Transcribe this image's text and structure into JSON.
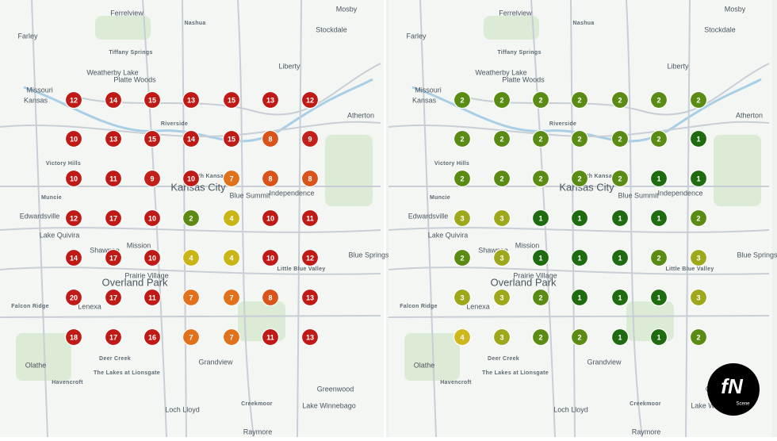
{
  "maps": [
    {
      "labels": [
        "Ferrelview",
        "Mosby",
        "Farley",
        "Stockdale",
        "Nashua",
        "Tiffany Springs",
        "Weatherby Lake",
        "Platte Woods",
        "Liberty",
        "Missouri",
        "Kansas",
        "Atherton",
        "Riverside",
        "North Kansas City",
        "Kansas City",
        "Blue Summit",
        "Independence",
        "Edwardsville",
        "Lake Quivira",
        "Shawnee",
        "Mission",
        "Prairie Village",
        "Overland Park",
        "Falcon Ridge",
        "Lenexa",
        "Blue Springs",
        "Little Blue Valley",
        "Deer Creek",
        "The Lakes at Lionsgate",
        "Grandview",
        "Olathe",
        "Havencroft",
        "Greenwood",
        "Creekmoor",
        "Loch Lloyd",
        "Raymore",
        "Lake Winnebago",
        "Muncie",
        "Victory Hills"
      ],
      "grid": [
        [
          12,
          14,
          15,
          13,
          15,
          13,
          12
        ],
        [
          10,
          13,
          15,
          14,
          15,
          8,
          9
        ],
        [
          10,
          11,
          9,
          10,
          7,
          8,
          8
        ],
        [
          12,
          17,
          10,
          2,
          4,
          10,
          11
        ],
        [
          14,
          17,
          10,
          4,
          4,
          10,
          12
        ],
        [
          20,
          17,
          11,
          7,
          7,
          8,
          13
        ],
        [
          18,
          17,
          16,
          7,
          7,
          11,
          13
        ]
      ],
      "palette": {
        "2": "#5c8a12",
        "4": "#c9b515",
        "7": "#e2711b",
        "8": "#d9531a",
        "9": "#c2201a",
        "10": "#c01a17",
        "11": "#c01a17",
        "12": "#c01a17",
        "13": "#c01a17",
        "14": "#c01a17",
        "15": "#c01a17",
        "16": "#c01a17",
        "17": "#c01a17",
        "18": "#c01a17",
        "20": "#c01a17"
      }
    },
    {
      "labels": [
        "Ferrelview",
        "Mosby",
        "Farley",
        "Stockdale",
        "Nashua",
        "Tiffany Springs",
        "Weatherby Lake",
        "Platte Woods",
        "Liberty",
        "Missouri",
        "Kansas",
        "Atherton",
        "Riverside",
        "North Kansas City",
        "Kansas City",
        "Blue Summit",
        "Independence",
        "Edwardsville",
        "Lake Quivira",
        "Shawnee",
        "Mission",
        "Prairie Village",
        "Overland Park",
        "Falcon Ridge",
        "Lenexa",
        "Blue Springs",
        "Little Blue Valley",
        "Deer Creek",
        "The Lakes at Lionsgate",
        "Grandview",
        "Olathe",
        "Havencroft",
        "Greenwood",
        "Creekmoor",
        "Loch Lloyd",
        "Raymore",
        "Lake Winnebago",
        "Muncie",
        "Victory Hills"
      ],
      "grid": [
        [
          2,
          2,
          2,
          2,
          2,
          2,
          2
        ],
        [
          2,
          2,
          2,
          2,
          2,
          2,
          1
        ],
        [
          2,
          2,
          2,
          2,
          2,
          1,
          1
        ],
        [
          3,
          3,
          1,
          1,
          1,
          1,
          2
        ],
        [
          2,
          3,
          1,
          1,
          1,
          2,
          3
        ],
        [
          3,
          3,
          2,
          1,
          1,
          1,
          3
        ],
        [
          4,
          3,
          2,
          2,
          1,
          1,
          2
        ]
      ],
      "palette": {
        "1": "#1e6b10",
        "2": "#5a8b13",
        "3": "#9ea81b",
        "4": "#cdb71d"
      }
    }
  ],
  "logo": {
    "mark": "fN",
    "sub": "Scene"
  }
}
